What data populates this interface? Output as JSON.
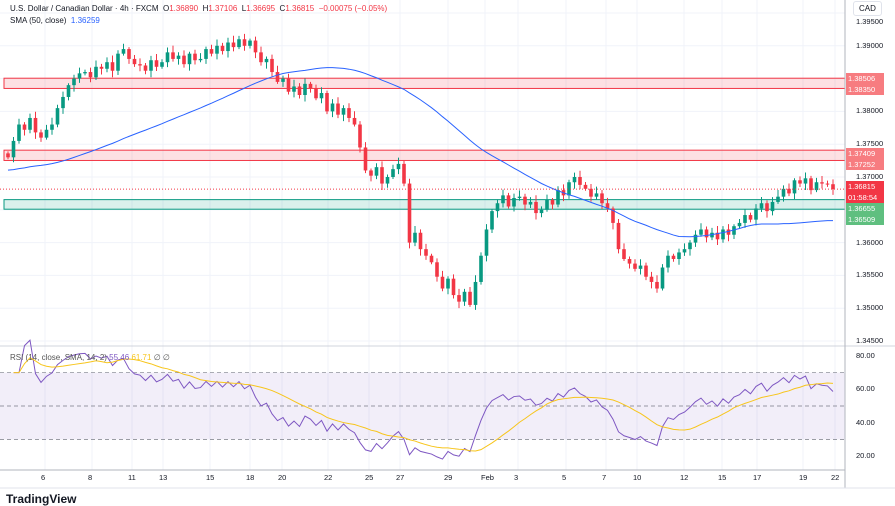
{
  "header": {
    "symbol": "U.S. Dollar / Canadian Dollar · 4h · FXCM",
    "open_label": "O",
    "open": "1.36890",
    "high_label": "H",
    "high": "1.37106",
    "low_label": "L",
    "low": "1.36695",
    "close_label": "C",
    "close": "1.36815",
    "change": "−0.00075 (−0.05%)",
    "sma_label": "SMA (50, close)",
    "sma_value": "1.36259"
  },
  "rsi": {
    "label": "RSI (14, close, SMA, 14, 2)",
    "value": "55.46",
    "sma_value": "61.71",
    "extra": "∅ ∅"
  },
  "currency": "CAD",
  "price_axis": [
    "1.39500",
    "1.39000",
    "1.38000",
    "1.37500",
    "1.37000",
    "1.36000",
    "1.35500",
    "1.35000",
    "1.34500"
  ],
  "rsi_axis": [
    "80.00",
    "60.00",
    "40.00",
    "20.00"
  ],
  "time_axis": [
    "6",
    "8",
    "11",
    "13",
    "15",
    "18",
    "20",
    "22",
    "25",
    "27",
    "29",
    "Feb",
    "3",
    "5",
    "7",
    "10",
    "12",
    "15",
    "17",
    "19",
    "22"
  ],
  "zones": [
    {
      "top": "1.38506",
      "bottom": "1.38350",
      "color": "#f23645"
    },
    {
      "top": "1.37409",
      "bottom": "1.37252",
      "color": "#f23645"
    },
    {
      "top": "1.36655",
      "bottom": "1.36509",
      "color": "#089981"
    }
  ],
  "price_tag": {
    "price": "1.36815",
    "countdown": "01:58:54"
  },
  "logo": "TradingView",
  "colors": {
    "up": "#089981",
    "down": "#f23645",
    "sma": "#2962ff",
    "rsi": "#7e57c2",
    "rsi_sma": "#f7c51c"
  },
  "chart_data": {
    "type": "candlestick",
    "ylim": [
      1.345,
      1.395
    ],
    "rsi_ylim": [
      20,
      80
    ],
    "closes": [
      1.373,
      1.3755,
      1.378,
      1.3772,
      1.379,
      1.3768,
      1.376,
      1.3772,
      1.378,
      1.3805,
      1.3822,
      1.384,
      1.385,
      1.3858,
      1.386,
      1.3852,
      1.3868,
      1.3865,
      1.3875,
      1.3862,
      1.3888,
      1.3895,
      1.388,
      1.3872,
      1.387,
      1.3862,
      1.3878,
      1.3868,
      1.3875,
      1.389,
      1.388,
      1.3885,
      1.3872,
      1.3888,
      1.3878,
      1.388,
      1.3895,
      1.3888,
      1.39,
      1.3892,
      1.3905,
      1.3898,
      1.391,
      1.39,
      1.3908,
      1.389,
      1.3875,
      1.388,
      1.386,
      1.3845,
      1.385,
      1.383,
      1.3838,
      1.3825,
      1.3842,
      1.3835,
      1.382,
      1.3828,
      1.38,
      1.3812,
      1.3795,
      1.3805,
      1.379,
      1.378,
      1.3745,
      1.371,
      1.3702,
      1.3715,
      1.369,
      1.37,
      1.3712,
      1.372,
      1.369,
      1.36,
      1.3615,
      1.359,
      1.358,
      1.357,
      1.3548,
      1.353,
      1.3545,
      1.352,
      1.351,
      1.3525,
      1.3505,
      1.354,
      1.358,
      1.362,
      1.3648,
      1.366,
      1.3672,
      1.3655,
      1.3668,
      1.367,
      1.3658,
      1.3662,
      1.3645,
      1.365,
      1.3665,
      1.3658,
      1.368,
      1.3672,
      1.3692,
      1.37,
      1.3688,
      1.3682,
      1.367,
      1.3675,
      1.366,
      1.3652,
      1.363,
      1.359,
      1.3575,
      1.3568,
      1.356,
      1.3565,
      1.3548,
      1.354,
      1.353,
      1.3562,
      1.358,
      1.3575,
      1.3585,
      1.359,
      1.36,
      1.3612,
      1.362,
      1.3608,
      1.3615,
      1.3605,
      1.362,
      1.3612,
      1.3625,
      1.363,
      1.3642,
      1.3635,
      1.3652,
      1.366,
      1.3648,
      1.3662,
      1.367,
      1.3682,
      1.3675,
      1.3695,
      1.369,
      1.3698,
      1.368,
      1.3692,
      1.369,
      1.3689,
      1.36815
    ]
  }
}
